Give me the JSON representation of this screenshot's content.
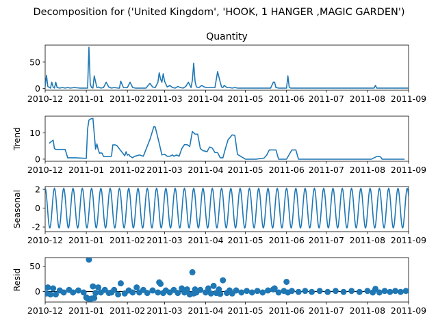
{
  "suptitle": "Decomposition for ('United Kingdom', 'HOOK, 1 HANGER ,MAGIC GARDEN')",
  "colors": {
    "line": "#1f77b4",
    "axis": "#000000",
    "background": "#ffffff"
  },
  "chart_data": [
    {
      "type": "line",
      "title": "Quantity",
      "ylabel": "",
      "xlim": [
        "2010-12-01",
        "2011-09-01"
      ],
      "ylim": [
        -3,
        82
      ],
      "yticks": [
        0,
        50
      ],
      "x_ticks": [
        "2010-12",
        "2011-01",
        "2011-02",
        "2011-03",
        "2011-04",
        "2011-05",
        "2011-06",
        "2011-07",
        "2011-08",
        "2011-09"
      ],
      "series": [
        {
          "x": [
            "2010-12-01",
            "2010-12-02",
            "2010-12-03",
            "2010-12-05",
            "2010-12-06",
            "2010-12-07",
            "2010-12-08",
            "2010-12-09",
            "2010-12-10",
            "2010-12-12",
            "2010-12-14",
            "2010-12-16",
            "2010-12-18",
            "2010-12-20",
            "2010-12-23",
            "2010-12-27",
            "2010-12-30",
            "2011-01-02",
            "2011-01-03",
            "2011-01-04",
            "2011-01-05",
            "2011-01-06",
            "2011-01-07",
            "2011-01-09",
            "2011-01-10",
            "2011-01-12",
            "2011-01-14",
            "2011-01-16",
            "2011-01-18",
            "2011-01-20",
            "2011-01-22",
            "2011-01-25",
            "2011-01-26",
            "2011-01-27",
            "2011-01-29",
            "2011-02-01",
            "2011-02-03",
            "2011-02-05",
            "2011-02-07",
            "2011-02-09",
            "2011-02-12",
            "2011-02-15",
            "2011-02-18",
            "2011-02-20",
            "2011-02-22",
            "2011-02-24",
            "2011-02-25",
            "2011-02-26",
            "2011-02-27",
            "2011-02-28",
            "2011-03-01",
            "2011-03-03",
            "2011-03-05",
            "2011-03-07",
            "2011-03-09",
            "2011-03-11",
            "2011-03-13",
            "2011-03-15",
            "2011-03-17",
            "2011-03-19",
            "2011-03-21",
            "2011-03-22",
            "2011-03-23",
            "2011-03-24",
            "2011-03-25",
            "2011-03-27",
            "2011-03-29",
            "2011-03-31",
            "2011-04-02",
            "2011-04-04",
            "2011-04-06",
            "2011-04-08",
            "2011-04-10",
            "2011-04-12",
            "2011-04-13",
            "2011-04-14",
            "2011-04-15",
            "2011-04-17",
            "2011-04-19",
            "2011-04-21",
            "2011-04-23",
            "2011-04-25",
            "2011-05-01",
            "2011-05-10",
            "2011-05-20",
            "2011-05-22",
            "2011-05-23",
            "2011-05-24",
            "2011-05-26",
            "2011-06-01",
            "2011-06-02",
            "2011-06-03",
            "2011-06-04",
            "2011-06-06",
            "2011-06-15",
            "2011-07-01",
            "2011-07-15",
            "2011-08-01",
            "2011-08-06",
            "2011-08-07",
            "2011-08-08",
            "2011-08-10",
            "2011-08-20",
            "2011-09-01"
          ],
          "y": [
            4,
            25,
            4,
            1,
            12,
            3,
            1,
            12,
            2,
            1,
            2,
            1,
            2,
            1,
            2,
            1,
            1,
            1,
            78,
            8,
            2,
            1,
            24,
            2,
            3,
            1,
            2,
            12,
            3,
            1,
            2,
            1,
            1,
            14,
            2,
            2,
            12,
            2,
            1,
            1,
            1,
            1,
            10,
            3,
            2,
            12,
            30,
            18,
            12,
            28,
            14,
            3,
            6,
            2,
            1,
            4,
            2,
            1,
            4,
            12,
            2,
            16,
            48,
            14,
            3,
            2,
            6,
            3,
            2,
            2,
            2,
            2,
            32,
            12,
            3,
            2,
            6,
            2,
            2,
            1,
            2,
            1,
            1,
            1,
            1,
            12,
            12,
            2,
            1,
            1,
            24,
            3,
            1,
            1,
            1,
            1,
            1,
            1,
            1,
            6,
            1,
            1,
            1,
            1
          ]
        }
      ]
    },
    {
      "type": "line",
      "title": "",
      "ylabel": "Trend",
      "xlim": [
        "2010-12-01",
        "2011-09-01"
      ],
      "ylim": [
        -0.8,
        16.3
      ],
      "yticks": [
        0,
        10
      ],
      "x_ticks": [
        "2010-12",
        "2011-01",
        "2011-02",
        "2011-03",
        "2011-04",
        "2011-05",
        "2011-06",
        "2011-07",
        "2011-08",
        "2011-09"
      ],
      "series": [
        {
          "x": [
            "2010-12-04",
            "2010-12-07",
            "2010-12-08",
            "2010-12-09",
            "2010-12-16",
            "2010-12-17",
            "2010-12-18",
            "2010-12-24",
            "2011-01-01",
            "2011-01-02",
            "2011-01-03",
            "2011-01-04",
            "2011-01-06",
            "2011-01-08",
            "2011-01-09",
            "2011-01-10",
            "2011-01-11",
            "2011-01-12",
            "2011-01-13",
            "2011-01-14",
            "2011-01-20",
            "2011-01-21",
            "2011-01-23",
            "2011-01-24",
            "2011-01-30",
            "2011-01-31",
            "2011-02-01",
            "2011-02-02",
            "2011-02-03",
            "2011-02-05",
            "2011-02-06",
            "2011-02-10",
            "2011-02-13",
            "2011-02-18",
            "2011-02-21",
            "2011-02-22",
            "2011-02-25",
            "2011-02-27",
            "2011-03-01",
            "2011-03-03",
            "2011-03-05",
            "2011-03-07",
            "2011-03-08",
            "2011-03-10",
            "2011-03-12",
            "2011-03-14",
            "2011-03-16",
            "2011-03-18",
            "2011-03-20",
            "2011-03-22",
            "2011-03-24",
            "2011-03-26",
            "2011-03-28",
            "2011-03-30",
            "2011-04-01",
            "2011-04-02",
            "2011-04-04",
            "2011-04-06",
            "2011-04-08",
            "2011-04-10",
            "2011-04-12",
            "2011-04-14",
            "2011-04-16",
            "2011-04-18",
            "2011-04-19",
            "2011-04-21",
            "2011-04-23",
            "2011-04-25",
            "2011-05-01",
            "2011-05-09",
            "2011-05-15",
            "2011-05-17",
            "2011-05-19",
            "2011-05-24",
            "2011-05-26",
            "2011-06-01",
            "2011-06-05",
            "2011-06-08",
            "2011-06-10",
            "2011-08-04",
            "2011-08-08",
            "2011-08-09",
            "2011-08-10",
            "2011-08-11",
            "2011-08-12",
            "2011-08-29"
          ],
          "y": [
            6,
            7.2,
            4,
            3.7,
            3.7,
            2.2,
            0.5,
            0.5,
            0.3,
            11.5,
            14.8,
            15.2,
            15.5,
            3.8,
            5.8,
            3.6,
            2.2,
            2.4,
            2.2,
            1.0,
            1.1,
            5.4,
            5.4,
            5.2,
            1.3,
            2.8,
            1.5,
            1.8,
            1.1,
            0.5,
            1.0,
            1.6,
            1.1,
            7.5,
            12.4,
            12.2,
            6.0,
            1.6,
            1.9,
            1.1,
            1.1,
            1.6,
            1.1,
            1.6,
            1.1,
            4.0,
            5.5,
            5.5,
            4.8,
            10.5,
            9.5,
            9.5,
            4.0,
            3.2,
            3.0,
            2.8,
            4.6,
            4.2,
            2.5,
            2.5,
            0.5,
            0.5,
            4.2,
            7.5,
            8.0,
            9.2,
            9.0,
            1.8,
            0,
            0,
            0.4,
            1.5,
            3.5,
            3.5,
            0,
            0,
            3.5,
            3.5,
            0,
            0,
            1.0,
            1.0,
            1.0,
            0.8,
            0,
            0
          ]
        }
      ]
    },
    {
      "type": "line",
      "title": "",
      "ylabel": "Seasonal",
      "xlim": [
        "2010-12-01",
        "2011-09-01"
      ],
      "ylim": [
        -2.5,
        2.3
      ],
      "yticks": [
        -2,
        0,
        2
      ],
      "x_ticks": [
        "2010-12",
        "2011-01",
        "2011-02",
        "2011-03",
        "2011-04",
        "2011-05",
        "2011-06",
        "2011-07",
        "2011-08",
        "2011-09"
      ],
      "period_days": 7,
      "amplitude": 2.1,
      "series": [
        {
          "kind": "periodic"
        }
      ]
    },
    {
      "type": "scatter",
      "title": "",
      "ylabel": "Resid",
      "xlim": [
        "2010-12-01",
        "2011-09-01"
      ],
      "ylim": [
        -21,
        67
      ],
      "yticks": [
        0,
        50
      ],
      "baseline": 0,
      "x_ticks": [
        "2010-12",
        "2011-01",
        "2011-02",
        "2011-03",
        "2011-04",
        "2011-05",
        "2011-06",
        "2011-07",
        "2011-08",
        "2011-09"
      ],
      "series": [
        {
          "x": [
            "2010-12-02",
            "2010-12-03",
            "2010-12-05",
            "2010-12-07",
            "2010-12-09",
            "2010-12-12",
            "2010-12-15",
            "2010-12-19",
            "2010-12-22",
            "2010-12-26",
            "2010-12-30",
            "2011-01-01",
            "2011-01-02",
            "2011-01-03",
            "2011-01-04",
            "2011-01-05",
            "2011-01-06",
            "2011-01-07",
            "2011-01-08",
            "2011-01-10",
            "2011-01-12",
            "2011-01-15",
            "2011-01-18",
            "2011-01-20",
            "2011-01-22",
            "2011-01-25",
            "2011-01-27",
            "2011-01-30",
            "2011-02-02",
            "2011-02-05",
            "2011-02-08",
            "2011-02-10",
            "2011-02-13",
            "2011-02-16",
            "2011-02-20",
            "2011-02-24",
            "2011-02-25",
            "2011-02-26",
            "2011-02-28",
            "2011-03-02",
            "2011-03-05",
            "2011-03-08",
            "2011-03-11",
            "2011-03-14",
            "2011-03-16",
            "2011-03-18",
            "2011-03-20",
            "2011-03-22",
            "2011-03-23",
            "2011-03-24",
            "2011-03-25",
            "2011-03-28",
            "2011-04-01",
            "2011-04-03",
            "2011-04-05",
            "2011-04-07",
            "2011-04-09",
            "2011-04-11",
            "2011-04-12",
            "2011-04-14",
            "2011-04-17",
            "2011-04-19",
            "2011-04-21",
            "2011-04-24",
            "2011-04-28",
            "2011-05-02",
            "2011-05-06",
            "2011-05-10",
            "2011-05-14",
            "2011-05-18",
            "2011-05-22",
            "2011-05-23",
            "2011-05-26",
            "2011-05-30",
            "2011-06-01",
            "2011-06-02",
            "2011-06-05",
            "2011-06-10",
            "2011-06-15",
            "2011-06-20",
            "2011-06-26",
            "2011-07-02",
            "2011-07-08",
            "2011-07-14",
            "2011-07-20",
            "2011-07-26",
            "2011-08-01",
            "2011-08-05",
            "2011-08-07",
            "2011-08-10",
            "2011-08-14",
            "2011-08-18",
            "2011-08-22",
            "2011-08-26",
            "2011-08-30"
          ],
          "y": [
            -4,
            8,
            -6,
            6,
            -6,
            2,
            -2,
            3,
            -2,
            2,
            -2,
            -12,
            -14,
            63,
            -15,
            -14,
            10,
            -13,
            -3,
            8,
            -2,
            3,
            -3,
            -2,
            3,
            -6,
            16,
            -4,
            2,
            -2,
            8,
            -2,
            3,
            -3,
            2,
            -2,
            18,
            15,
            -3,
            2,
            -2,
            3,
            -3,
            6,
            -2,
            4,
            -6,
            38,
            -4,
            4,
            -2,
            3,
            -2,
            6,
            -4,
            11,
            -3,
            4,
            -5,
            22,
            -3,
            2,
            -4,
            2,
            -2,
            1,
            -2,
            1,
            -2,
            2,
            4,
            6,
            -2,
            1,
            19,
            -2,
            1,
            -1,
            1,
            -1,
            1,
            -1,
            1,
            -1,
            1,
            -1,
            1,
            -2,
            5,
            -2,
            1,
            -1,
            1,
            -1,
            1
          ]
        }
      ]
    }
  ]
}
